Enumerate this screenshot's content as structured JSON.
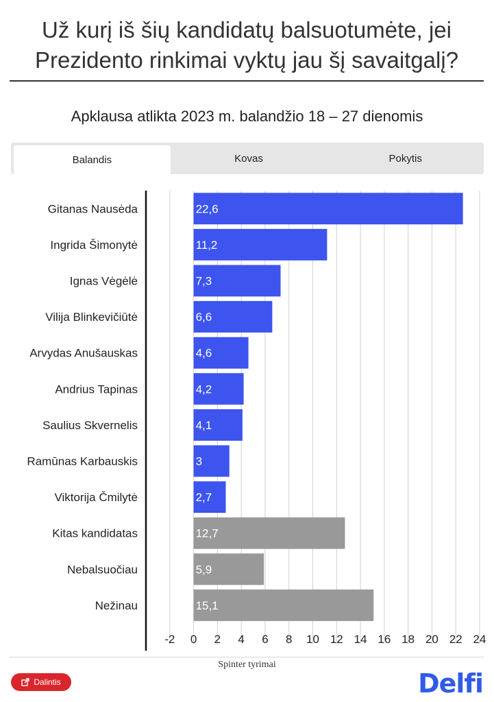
{
  "title": {
    "line1": "Už kurį iš šių kandidatų balsuotumėte, jei",
    "line2": "Prezidento rinkimai vyktų jau šį savaitgalį?"
  },
  "subtitle": "Apklausa atlikta 2023 m. balandžio 18 – 27 dienomis",
  "tabs": [
    {
      "label": "Balandis",
      "active": true
    },
    {
      "label": "Kovas",
      "active": false
    },
    {
      "label": "Pokytis",
      "active": false
    }
  ],
  "chart_data": {
    "type": "bar",
    "orientation": "horizontal",
    "categories": [
      "Gitanas Nausėda",
      "Ingrida Šimonytė",
      "Ignas Vėgėlė",
      "Vilija Blinkevičiūtė",
      "Arvydas Anušauskas",
      "Andrius Tapinas",
      "Saulius Skvernelis",
      "Ramūnas Karbauskis",
      "Viktorija Čmilytė",
      "Kitas kandidatas",
      "Nebalsuočiau",
      "Nežinau"
    ],
    "values": [
      22.6,
      11.2,
      7.3,
      6.6,
      4.6,
      4.2,
      4.1,
      3,
      2.7,
      12.7,
      5.9,
      15.1
    ],
    "value_labels": [
      "22,6",
      "11,2",
      "7,3",
      "6,6",
      "4,6",
      "4,2",
      "4,1",
      "3",
      "2,7",
      "12,7",
      "5,9",
      "15,1"
    ],
    "bar_colors": [
      "#3d55ee",
      "#3d55ee",
      "#3d55ee",
      "#3d55ee",
      "#3d55ee",
      "#3d55ee",
      "#3d55ee",
      "#3d55ee",
      "#3d55ee",
      "#999999",
      "#999999",
      "#999999"
    ],
    "xlim": [
      -4,
      24
    ],
    "x_ticks": [
      -2,
      0,
      2,
      4,
      6,
      8,
      10,
      12,
      14,
      16,
      18,
      20,
      22,
      24
    ],
    "grid": true
  },
  "footer": {
    "source": "Spinter tyrimai",
    "share_label": "Dalintis",
    "share_icon": "share-icon",
    "logo_text": "Delfi"
  },
  "colors": {
    "candidate_bar": "#3d55ee",
    "other_bar": "#999999",
    "share_button": "#d8262c",
    "logo": "#2f5be7"
  }
}
